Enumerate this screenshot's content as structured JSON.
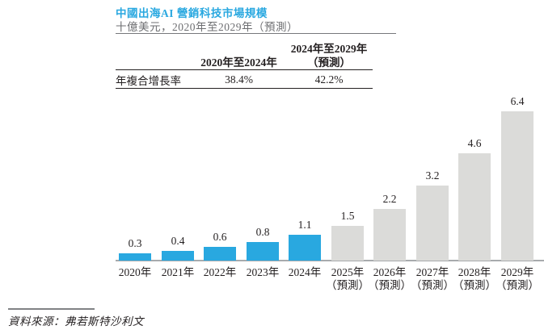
{
  "header": {
    "title": "中國出海AI 營銷科技市場規模",
    "subtitle": "十億美元，2020年至2029年（預測）"
  },
  "cagr_table": {
    "col_headers": [
      {
        "line1": "2020年至2024年",
        "line2": ""
      },
      {
        "line1": "2024年至2029年",
        "line2": "（預測）"
      }
    ],
    "rows": [
      {
        "label": "年複合增長率",
        "values": [
          "38.4%",
          "42.2%"
        ]
      }
    ]
  },
  "chart_data": {
    "type": "bar",
    "title": "中國出海AI 營銷科技市場規模",
    "ylabel": "十億美元",
    "categories": [
      "2020年",
      "2021年",
      "2022年",
      "2023年",
      "2024年",
      "2025年",
      "2026年",
      "2027年",
      "2028年",
      "2029年"
    ],
    "category_sublabels": [
      "",
      "",
      "",
      "",
      "",
      "（預測）",
      "（預測）",
      "（預測）",
      "（預測）",
      "（預測）"
    ],
    "values": [
      0.3,
      0.4,
      0.6,
      0.8,
      1.1,
      1.5,
      2.2,
      3.2,
      4.6,
      6.4
    ],
    "data_labels": [
      "0.3",
      "0.4",
      "0.6",
      "0.8",
      "1.1",
      "1.5",
      "2.2",
      "3.2",
      "4.6",
      "6.4"
    ],
    "bar_types": [
      "actual",
      "actual",
      "actual",
      "actual",
      "actual",
      "forecast",
      "forecast",
      "forecast",
      "forecast",
      "forecast"
    ],
    "colors": {
      "actual": "#29a8e0",
      "forecast": "#dbdbd9"
    },
    "ylim": [
      0,
      6.4
    ],
    "grid": false,
    "legend": false
  },
  "footer": {
    "source": "資料來源：弗若斯特沙利文"
  }
}
